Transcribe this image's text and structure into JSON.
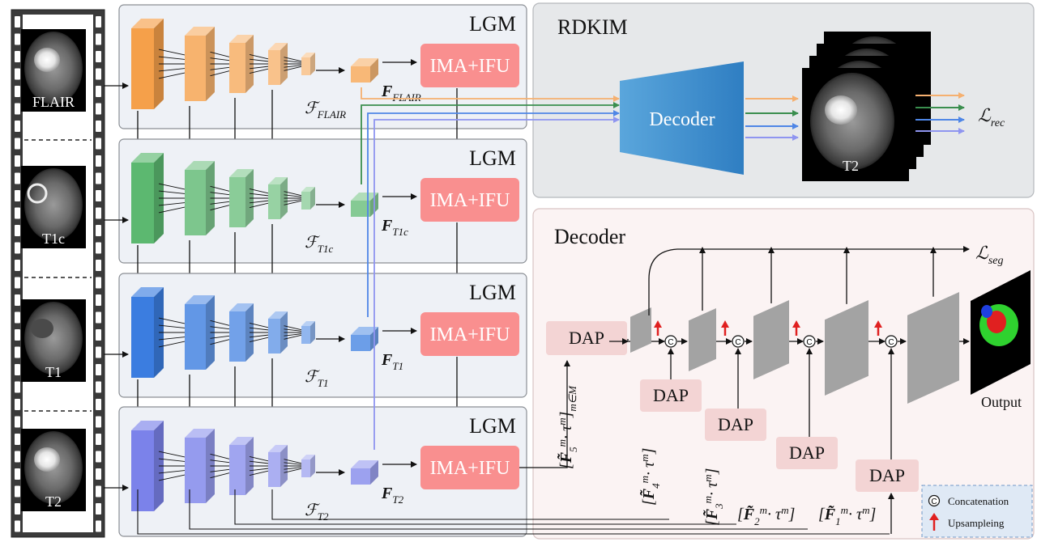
{
  "modalities": [
    "FLAIR",
    "T1c",
    "T1",
    "T2"
  ],
  "lgm_label": "LGM",
  "ima_ifu_label": "IMA+IFU",
  "rdkim": {
    "title": "RDKIM",
    "decoder_label": "Decoder",
    "output_image_label": "T2",
    "loss_label": "ℒ",
    "loss_sub": "rec"
  },
  "seg_decoder": {
    "title": "Decoder",
    "dap_label": "DAP",
    "output_label": "Output",
    "loss_label": "ℒ",
    "loss_sub": "seg"
  },
  "feature_math": {
    "script_F": "ℱ",
    "bold_F": "F",
    "subs": [
      "FLAIR",
      "T1c",
      "T1",
      "T2"
    ]
  },
  "dap_inputs": [
    {
      "lead": "[",
      "sym": "F̃",
      "sup": "m",
      "sub": "5",
      "rest": "· τ",
      "rest_sup": "m",
      "close": "]",
      "close_sub": "m∈M"
    },
    {
      "lead": "[",
      "sym": "F̃",
      "sup": "m",
      "sub": "4",
      "rest": "· τ",
      "rest_sup": "m",
      "close": "]"
    },
    {
      "lead": "[",
      "sym": "F̃",
      "sup": "m",
      "sub": "3",
      "rest": "· τ",
      "rest_sup": "m",
      "close": "]"
    },
    {
      "lead": "[",
      "sym": "F̃",
      "sup": "m",
      "sub": "2",
      "rest": "· τ",
      "rest_sup": "m",
      "close": "]"
    },
    {
      "lead": "[",
      "sym": "F̃",
      "sup": "m",
      "sub": "1",
      "rest": "· τ",
      "rest_sup": "m",
      "close": "]"
    }
  ],
  "legend": {
    "concat_symbol": "C",
    "concat_label": "Concatenation",
    "up_label": "Upsampleing"
  },
  "colors": {
    "flair": "#f5a04a",
    "t1c": "#5cb870",
    "t1": "#3b7de0",
    "t2": "#7b82ea",
    "ima": "#f98f8f",
    "dap": "#f3d4d4",
    "decoder": "#3d8fcf",
    "rdkim_bg": "#e6e8ea",
    "seg_bg": "#fbf3f3",
    "lgm_bg": "#eef1f6"
  }
}
